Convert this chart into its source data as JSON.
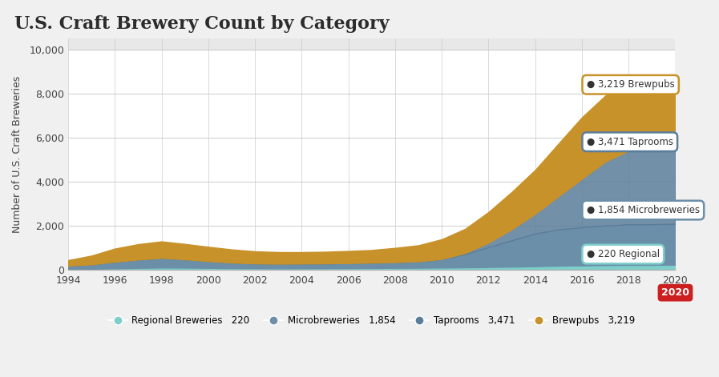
{
  "title": "U.S. Craft Brewery Count by Category",
  "xlabel": "",
  "ylabel": "Number of U.S. Craft Breweries",
  "years": [
    1994,
    1995,
    1996,
    1997,
    1998,
    1999,
    2000,
    2001,
    2002,
    2003,
    2004,
    2005,
    2006,
    2007,
    2008,
    2009,
    2010,
    2011,
    2012,
    2013,
    2014,
    2015,
    2016,
    2017,
    2018,
    2019,
    2020
  ],
  "regional": [
    30,
    35,
    55,
    75,
    90,
    85,
    75,
    65,
    60,
    55,
    58,
    60,
    65,
    70,
    75,
    80,
    90,
    100,
    115,
    130,
    150,
    175,
    186,
    202,
    209,
    213,
    220
  ],
  "microbreweries": [
    150,
    200,
    300,
    380,
    440,
    380,
    310,
    250,
    220,
    210,
    215,
    220,
    230,
    240,
    260,
    295,
    390,
    600,
    900,
    1200,
    1478,
    1650,
    1730,
    1796,
    1839,
    1844,
    1854
  ],
  "taprooms": [
    0,
    0,
    0,
    0,
    0,
    0,
    0,
    0,
    0,
    0,
    0,
    0,
    0,
    0,
    0,
    0,
    0,
    50,
    200,
    500,
    900,
    1500,
    2200,
    2900,
    3350,
    3420,
    3471
  ],
  "brewpubs": [
    250,
    400,
    600,
    700,
    750,
    700,
    650,
    600,
    550,
    530,
    520,
    530,
    550,
    580,
    650,
    730,
    900,
    1100,
    1400,
    1700,
    2000,
    2400,
    2800,
    3000,
    3100,
    3150,
    3219
  ],
  "color_regional": "#7ececa",
  "color_microbreweries": "#6b8fa8",
  "color_taprooms": "#5a7d9a",
  "color_brewpubs": "#c8922a",
  "color_background": "#f5f5f5",
  "color_plot_bg": "#ffffff",
  "ylim": [
    0,
    10500
  ],
  "yticks": [
    0,
    2000,
    4000,
    6000,
    8000,
    10000
  ],
  "xticks": [
    1994,
    1996,
    1998,
    2000,
    2002,
    2004,
    2006,
    2008,
    2010,
    2012,
    2014,
    2016,
    2018,
    2020
  ],
  "final_year": 2020,
  "label_brewpubs": "3,219 Brewpubs",
  "label_taprooms": "3,471 Taprooms",
  "label_microbreweries": "1,854 Microbreweries",
  "label_regional": "220 Regional",
  "legend_labels": [
    "Regional Breweries",
    "220",
    "Microbreweries",
    "1,854",
    "Taprooms",
    "3,471",
    "Brewpubs",
    "3,219"
  ]
}
